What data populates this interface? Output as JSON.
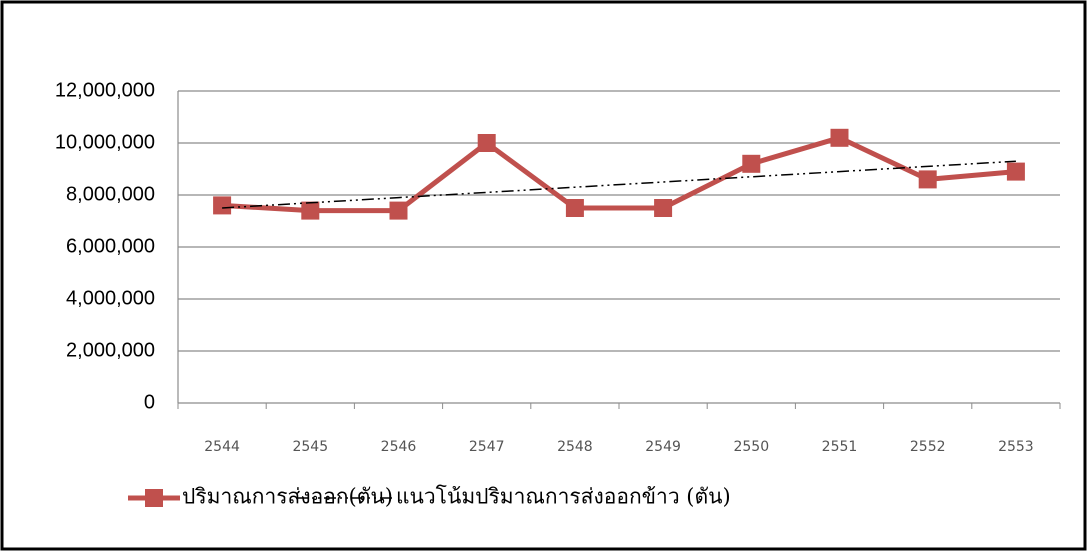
{
  "chart_data": {
    "type": "line",
    "categories": [
      "2544",
      "2545",
      "2546",
      "2547",
      "2548",
      "2549",
      "2550",
      "2551",
      "2552",
      "2553"
    ],
    "series": [
      {
        "name": "ปริมาณการส่งออก(ตัน)",
        "color": "#c0504d",
        "values": [
          7600000,
          7400000,
          7400000,
          10000000,
          7500000,
          7500000,
          9200000,
          10200000,
          8600000,
          8900000
        ]
      },
      {
        "name": "แนวโน้มปริมาณการส่งออกข้าว (ตัน)",
        "color": "#000000",
        "values": [
          7500000,
          7700000,
          7900000,
          8100000,
          8300000,
          8500000,
          8700000,
          8900000,
          9100000,
          9300000
        ]
      }
    ],
    "ylim": [
      0,
      12000000
    ],
    "yticks": [
      {
        "value": 0,
        "label": "0"
      },
      {
        "value": 2000000,
        "label": "2,000,000"
      },
      {
        "value": 4000000,
        "label": "4,000,000"
      },
      {
        "value": 6000000,
        "label": "6,000,000"
      },
      {
        "value": 8000000,
        "label": "8,000,000"
      },
      {
        "value": 10000000,
        "label": "10,000,000"
      },
      {
        "value": 12000000,
        "label": "12,000,000"
      }
    ],
    "grid": true,
    "legend": "bottom"
  }
}
